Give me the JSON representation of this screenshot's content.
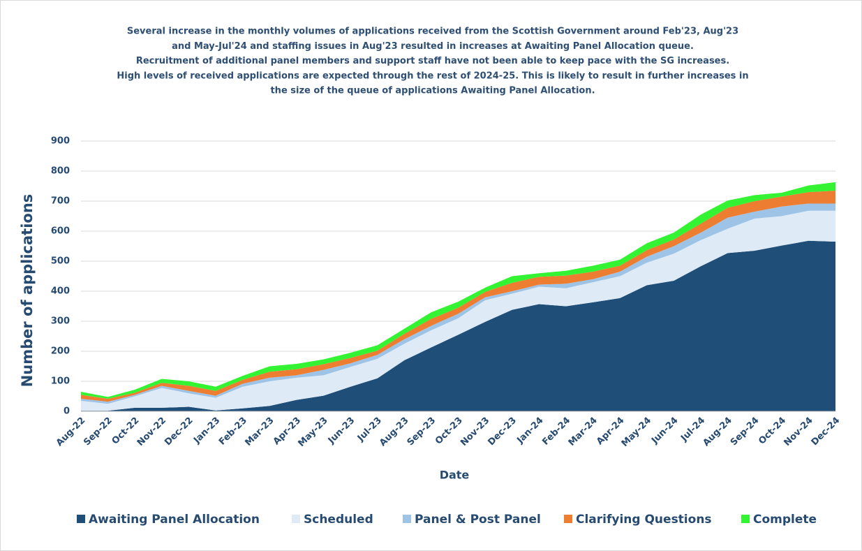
{
  "chart_data": {
    "type": "stacked_area",
    "title": [
      "Several increase in the monthly volumes of  applications received from the Scottish Government around Feb'23, Aug'23",
      "and May-Jul'24 and staffing issues in Aug'23 resulted in increases at Awaiting Panel Allocation queue.",
      "Recruitment of additional panel members and support staff have not been able to keep pace with the SG increases.",
      "High levels of received applications are expected through the rest of 2024-25. This is likely to result in further increases in",
      "the size of the queue of applications Awaiting Panel Allocation."
    ],
    "x_label": "Date",
    "y_label": "Number of applications",
    "categories": [
      "Aug-22",
      "Sep-22",
      "Oct-22",
      "Nov-22",
      "Dec-22",
      "Jan-23",
      "Feb-23",
      "Mar-23",
      "Apr-23",
      "May-23",
      "Jun-23",
      "Jul-23",
      "Aug-23",
      "Sep-23",
      "Oct-23",
      "Nov-23",
      "Dec-23",
      "Jan-24",
      "Feb-24",
      "Mar-24",
      "Apr-24",
      "May-24",
      "Jun-24",
      "Jul-24",
      "Aug-24",
      "Sep-24",
      "Oct-24",
      "Nov-24",
      "Dec-24"
    ],
    "series": [
      {
        "name": "Awaiting Panel Allocation",
        "color": "#1f4e79",
        "values": [
          2,
          2,
          12,
          12,
          15,
          3,
          10,
          18,
          38,
          52,
          82,
          110,
          170,
          213,
          255,
          298,
          338,
          357,
          350,
          363,
          377,
          420,
          435,
          483,
          527,
          535,
          552,
          568,
          565
        ]
      },
      {
        "name": "Scheduled",
        "color": "#deebf7",
        "values": [
          33,
          23,
          38,
          66,
          45,
          42,
          72,
          82,
          74,
          68,
          66,
          65,
          55,
          57,
          55,
          72,
          54,
          58,
          60,
          67,
          73,
          75,
          90,
          87,
          81,
          107,
          98,
          100,
          103
        ]
      },
      {
        "name": "Panel & Post Panel",
        "color": "#9dc3e6",
        "values": [
          7,
          7,
          5,
          7,
          8,
          7,
          10,
          12,
          8,
          18,
          12,
          13,
          15,
          15,
          15,
          10,
          8,
          7,
          15,
          10,
          15,
          20,
          25,
          25,
          37,
          23,
          32,
          24,
          24
        ]
      },
      {
        "name": "Clarifying Questions",
        "color": "#ed7d31",
        "values": [
          13,
          10,
          7,
          10,
          17,
          16,
          13,
          20,
          20,
          19,
          18,
          14,
          18,
          23,
          20,
          18,
          28,
          26,
          27,
          25,
          20,
          22,
          22,
          30,
          33,
          35,
          33,
          38,
          43
        ]
      },
      {
        "name": "Complete",
        "color": "#33f333",
        "values": [
          10,
          6,
          10,
          13,
          15,
          14,
          13,
          18,
          18,
          16,
          17,
          18,
          17,
          22,
          20,
          14,
          22,
          12,
          16,
          20,
          20,
          23,
          23,
          30,
          24,
          20,
          13,
          22,
          28
        ]
      }
    ],
    "ylim": [
      0,
      900
    ],
    "yticks": [
      0,
      100,
      200,
      300,
      400,
      500,
      600,
      700,
      800,
      900
    ],
    "grid": true,
    "legend": "bottom"
  }
}
